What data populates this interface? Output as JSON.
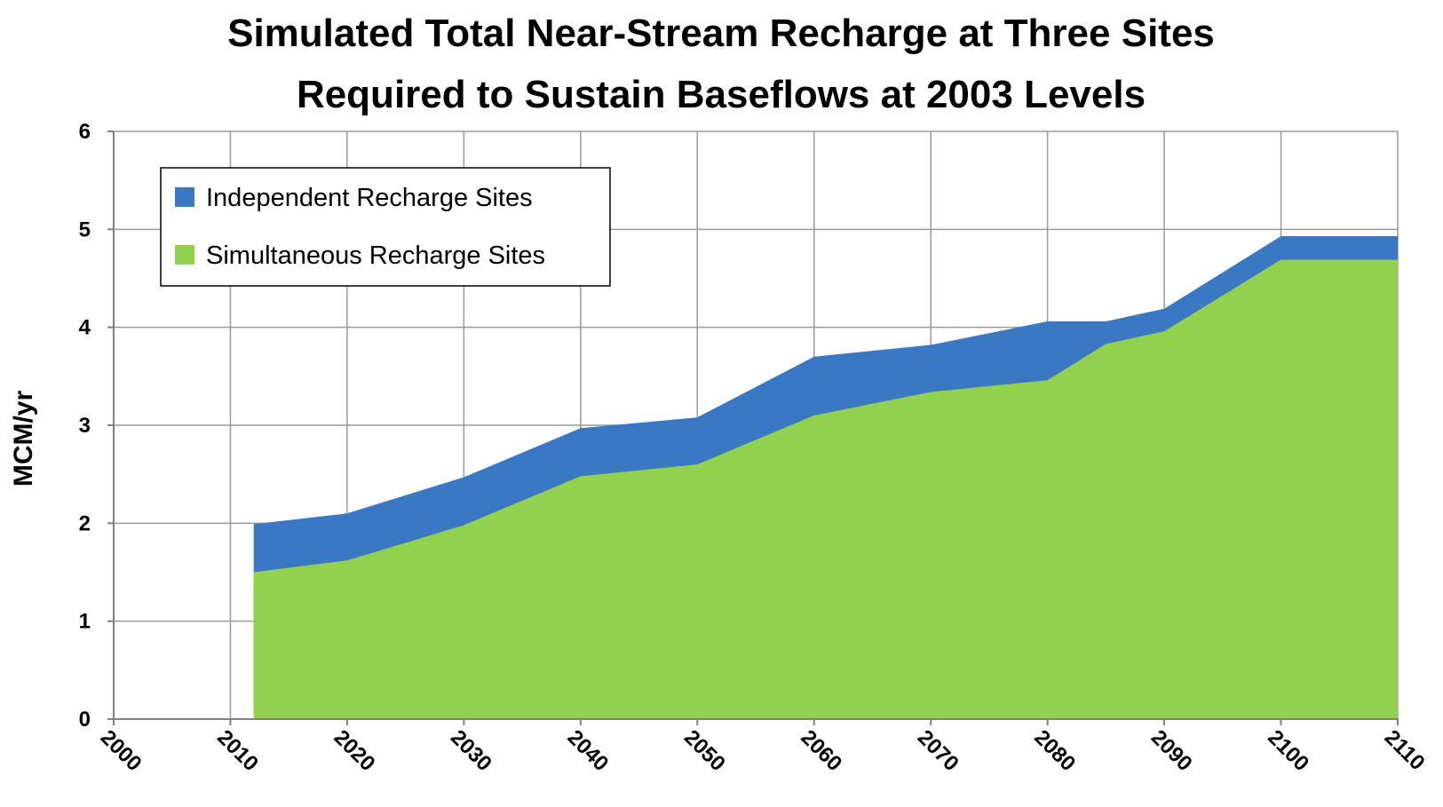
{
  "chart_data": {
    "type": "area",
    "title_lines": [
      "Simulated Total Near-Stream Recharge at Three Sites",
      "Required to Sustain Baseflows at 2003 Levels"
    ],
    "xlabel": "",
    "ylabel": "MCM/yr",
    "xlim": [
      2000,
      2110
    ],
    "ylim": [
      0,
      6
    ],
    "x_ticks": [
      "2000",
      "2010",
      "2020",
      "2030",
      "2040",
      "2050",
      "2060",
      "2070",
      "2080",
      "2090",
      "2100",
      "2110"
    ],
    "y_ticks": [
      "0",
      "1",
      "2",
      "3",
      "4",
      "5",
      "6"
    ],
    "grid": true,
    "legend_position": "top-left",
    "x": [
      2012,
      2020,
      2030,
      2040,
      2050,
      2060,
      2070,
      2080,
      2085,
      2090,
      2100,
      2110
    ],
    "series": [
      {
        "name": "Simultaneous Recharge Sites",
        "color": "#92D050",
        "values": [
          1.5,
          1.62,
          1.98,
          2.48,
          2.6,
          3.1,
          3.34,
          3.46,
          3.83,
          3.96,
          4.69,
          4.69
        ]
      },
      {
        "name": "Independent Recharge Sites",
        "color": "#3A78C3",
        "values": [
          1.99,
          2.1,
          2.47,
          2.97,
          3.08,
          3.7,
          3.82,
          4.06,
          4.06,
          4.19,
          4.93,
          4.93
        ]
      }
    ],
    "legend": [
      "Independent Recharge Sites",
      "Simultaneous Recharge Sites"
    ]
  }
}
